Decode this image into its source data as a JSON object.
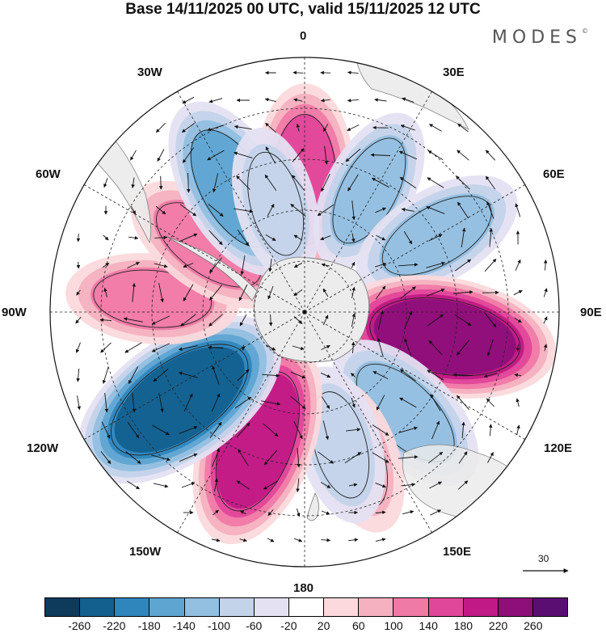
{
  "title": "Base 14/11/2025 00 UTC, valid 15/11/2025 12 UTC",
  "brand": "MODES",
  "brand_mark": "©",
  "lon_labels": {
    "l0": "0",
    "l30e": "30E",
    "l60e": "60E",
    "l90e": "90E",
    "l120e": "120E",
    "l150e": "150E",
    "l180": "180",
    "l150w": "150W",
    "l120w": "120W",
    "l90w": "90W",
    "l60w": "60W",
    "l30w": "30W"
  },
  "reference_vector": "30",
  "colorbar": {
    "colors": [
      "#0e3a5c",
      "#13608f",
      "#2f86bd",
      "#5fa5d2",
      "#93bfe0",
      "#c3d3ea",
      "#e4e2f2",
      "#ffffff",
      "#fbd9dc",
      "#f6b1c0",
      "#f07aa6",
      "#e0479a",
      "#c11a86",
      "#8e0f7a",
      "#5b0e72"
    ],
    "ticks": [
      "-260",
      "-220",
      "-180",
      "-140",
      "-100",
      "-60",
      "-20",
      "20",
      "60",
      "100",
      "140",
      "180",
      "220",
      "260"
    ]
  },
  "anomalies": [
    {
      "lon": 0,
      "colat": 26,
      "value": 150
    },
    {
      "lon": 28,
      "colat": 27,
      "value": -100
    },
    {
      "lon": 60,
      "colat": 30,
      "value": -120
    },
    {
      "lon": 100,
      "colat": 28,
      "value": 220
    },
    {
      "lon": 135,
      "colat": 28,
      "value": -130
    },
    {
      "lon": 160,
      "colat": 30,
      "value": 80
    },
    {
      "lon": 165,
      "colat": 27,
      "value": -80
    },
    {
      "lon": -160,
      "colat": 27,
      "value": 200
    },
    {
      "lon": -125,
      "colat": 30,
      "value": -240
    },
    {
      "lon": -85,
      "colat": 30,
      "value": 110
    },
    {
      "lon": -55,
      "colat": 23,
      "value": 120
    },
    {
      "lon": -30,
      "colat": 28,
      "value": -150
    },
    {
      "lon": -15,
      "colat": 22,
      "value": -70
    }
  ]
}
